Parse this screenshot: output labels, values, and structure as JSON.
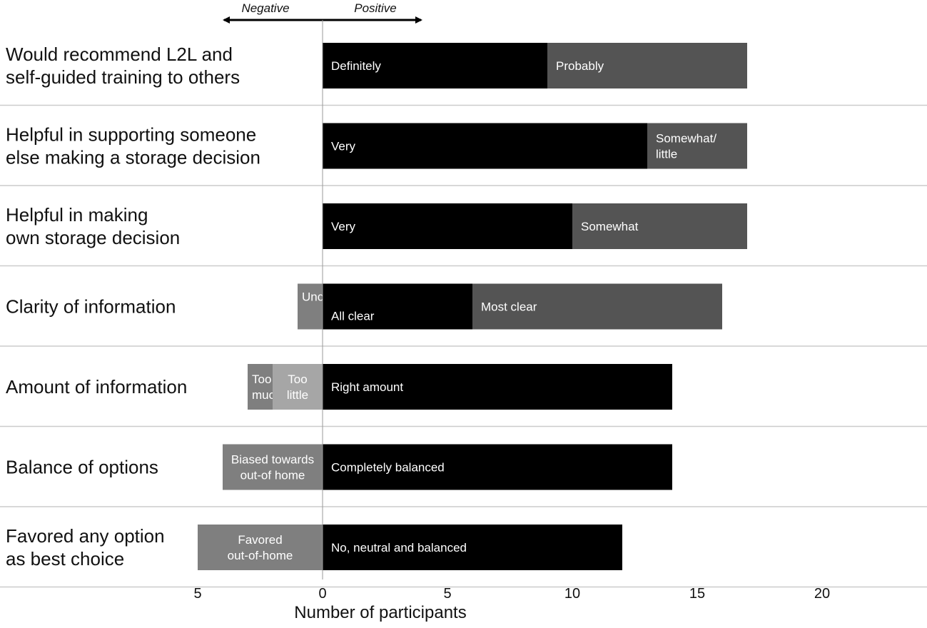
{
  "chart_data": {
    "type": "bar",
    "orientation": "horizontal",
    "stacked": true,
    "diverging": true,
    "xlabel": "Number of participants",
    "xlim": [
      -5,
      24.5
    ],
    "ticks": [
      {
        "value": -5,
        "label": "5"
      },
      {
        "value": 0,
        "label": "0"
      },
      {
        "value": 5,
        "label": "5"
      },
      {
        "value": 10,
        "label": "10"
      },
      {
        "value": 15,
        "label": "15"
      },
      {
        "value": 20,
        "label": "20"
      }
    ],
    "direction_labels": {
      "negative": "Negative",
      "positive": "Positive"
    },
    "grid": false,
    "legend": "none",
    "colors": {
      "black": "#000000",
      "dark_gray": "#545454",
      "mid_gray": "#7f7f7f",
      "light_gray": "#a6a6a6",
      "separator": "#cccccc",
      "zero_line": "#999999"
    },
    "rows": [
      {
        "label_lines": [
          "Would recommend L2L and",
          "self-guided training to others"
        ],
        "segments": [
          {
            "label_lines": [
              "Definitely"
            ],
            "value": 9,
            "color": "black",
            "label_align": "start"
          },
          {
            "label_lines": [
              "Probably"
            ],
            "value": 8,
            "color": "dark_gray",
            "label_align": "start"
          }
        ]
      },
      {
        "label_lines": [
          "Helpful in supporting someone",
          "else making a storage decision"
        ],
        "segments": [
          {
            "label_lines": [
              "Very"
            ],
            "value": 13,
            "color": "black",
            "label_align": "start"
          },
          {
            "label_lines": [
              "Somewhat/",
              "little"
            ],
            "value": 4,
            "color": "dark_gray",
            "label_align": "start"
          }
        ]
      },
      {
        "label_lines": [
          "Helpful in making",
          "own storage decision"
        ],
        "segments": [
          {
            "label_lines": [
              "Very"
            ],
            "value": 10,
            "color": "black",
            "label_align": "start"
          },
          {
            "label_lines": [
              "Somewhat"
            ],
            "value": 7,
            "color": "dark_gray",
            "label_align": "start"
          }
        ]
      },
      {
        "label_lines": [
          "Clarity of information"
        ],
        "segments": [
          {
            "label_lines": [
              "Unclear"
            ],
            "value": -1,
            "color": "mid_gray",
            "label_align": "start",
            "label_pos": "top"
          },
          {
            "label_lines": [
              "All clear"
            ],
            "value": 6,
            "color": "black",
            "label_align": "start",
            "label_pos": "bottom"
          },
          {
            "label_lines": [
              "Most clear"
            ],
            "value": 10,
            "color": "dark_gray",
            "label_align": "start"
          }
        ]
      },
      {
        "label_lines": [
          "Amount of information"
        ],
        "segments": [
          {
            "label_lines": [
              "Too",
              "much"
            ],
            "value": -1,
            "color": "mid_gray",
            "label_align": "start",
            "stack_from": -2
          },
          {
            "label_lines": [
              "Too",
              "little"
            ],
            "value": -2,
            "color": "light_gray",
            "label_align": "center"
          },
          {
            "label_lines": [
              "Right amount"
            ],
            "value": 14,
            "color": "black",
            "label_align": "start"
          }
        ]
      },
      {
        "label_lines": [
          "Balance of options"
        ],
        "segments": [
          {
            "label_lines": [
              "Biased towards",
              "out-of home"
            ],
            "value": -4,
            "color": "mid_gray",
            "label_align": "center"
          },
          {
            "label_lines": [
              "Completely balanced"
            ],
            "value": 14,
            "color": "black",
            "label_align": "start"
          }
        ]
      },
      {
        "label_lines": [
          "Favored any option",
          "as best choice"
        ],
        "segments": [
          {
            "label_lines": [
              "Favored",
              "out-of-home"
            ],
            "value": -5,
            "color": "mid_gray",
            "label_align": "center"
          },
          {
            "label_lines": [
              "No, neutral and balanced"
            ],
            "value": 12,
            "color": "black",
            "label_align": "start"
          }
        ]
      }
    ]
  }
}
